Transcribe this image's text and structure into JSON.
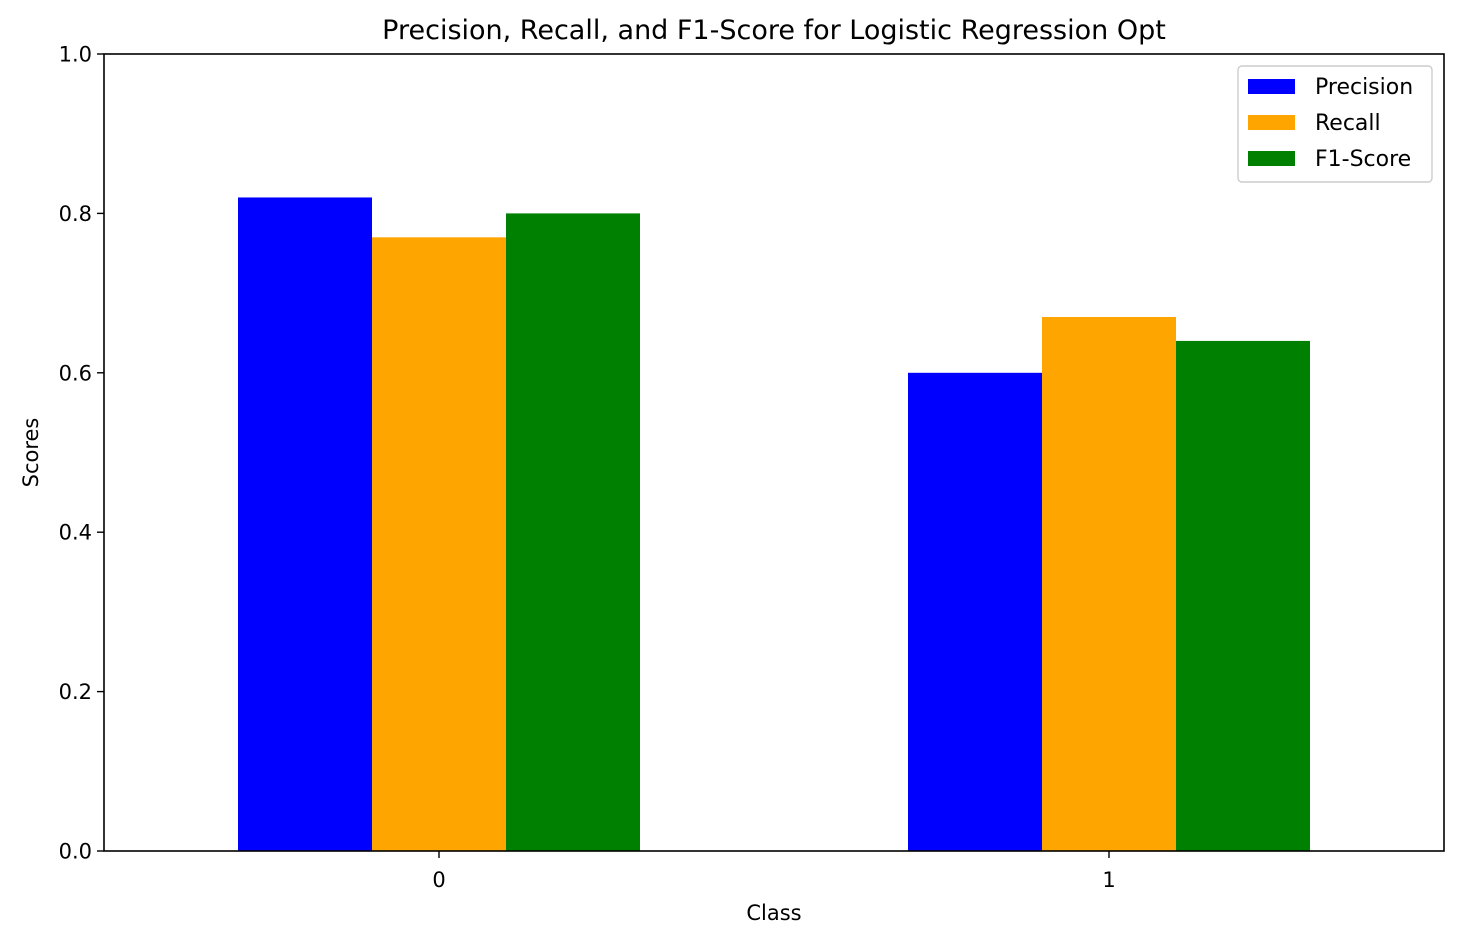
{
  "chart_data": {
    "type": "bar",
    "title": "Precision, Recall, and F1-Score for Logistic Regression Opt",
    "xlabel": "Class",
    "ylabel": "Scores",
    "categories": [
      "0",
      "1"
    ],
    "ylim": [
      0,
      1.0
    ],
    "yticks": [
      "0.0",
      "0.2",
      "0.4",
      "0.6",
      "0.8",
      "1.0"
    ],
    "series": [
      {
        "name": "Precision",
        "values": [
          0.82,
          0.6
        ],
        "color": "#0000ff"
      },
      {
        "name": "Recall",
        "values": [
          0.77,
          0.67
        ],
        "color": "#ffa500"
      },
      {
        "name": "F1-Score",
        "values": [
          0.8,
          0.64
        ],
        "color": "#008000"
      }
    ],
    "legend_position": "top-right",
    "grid": false
  }
}
